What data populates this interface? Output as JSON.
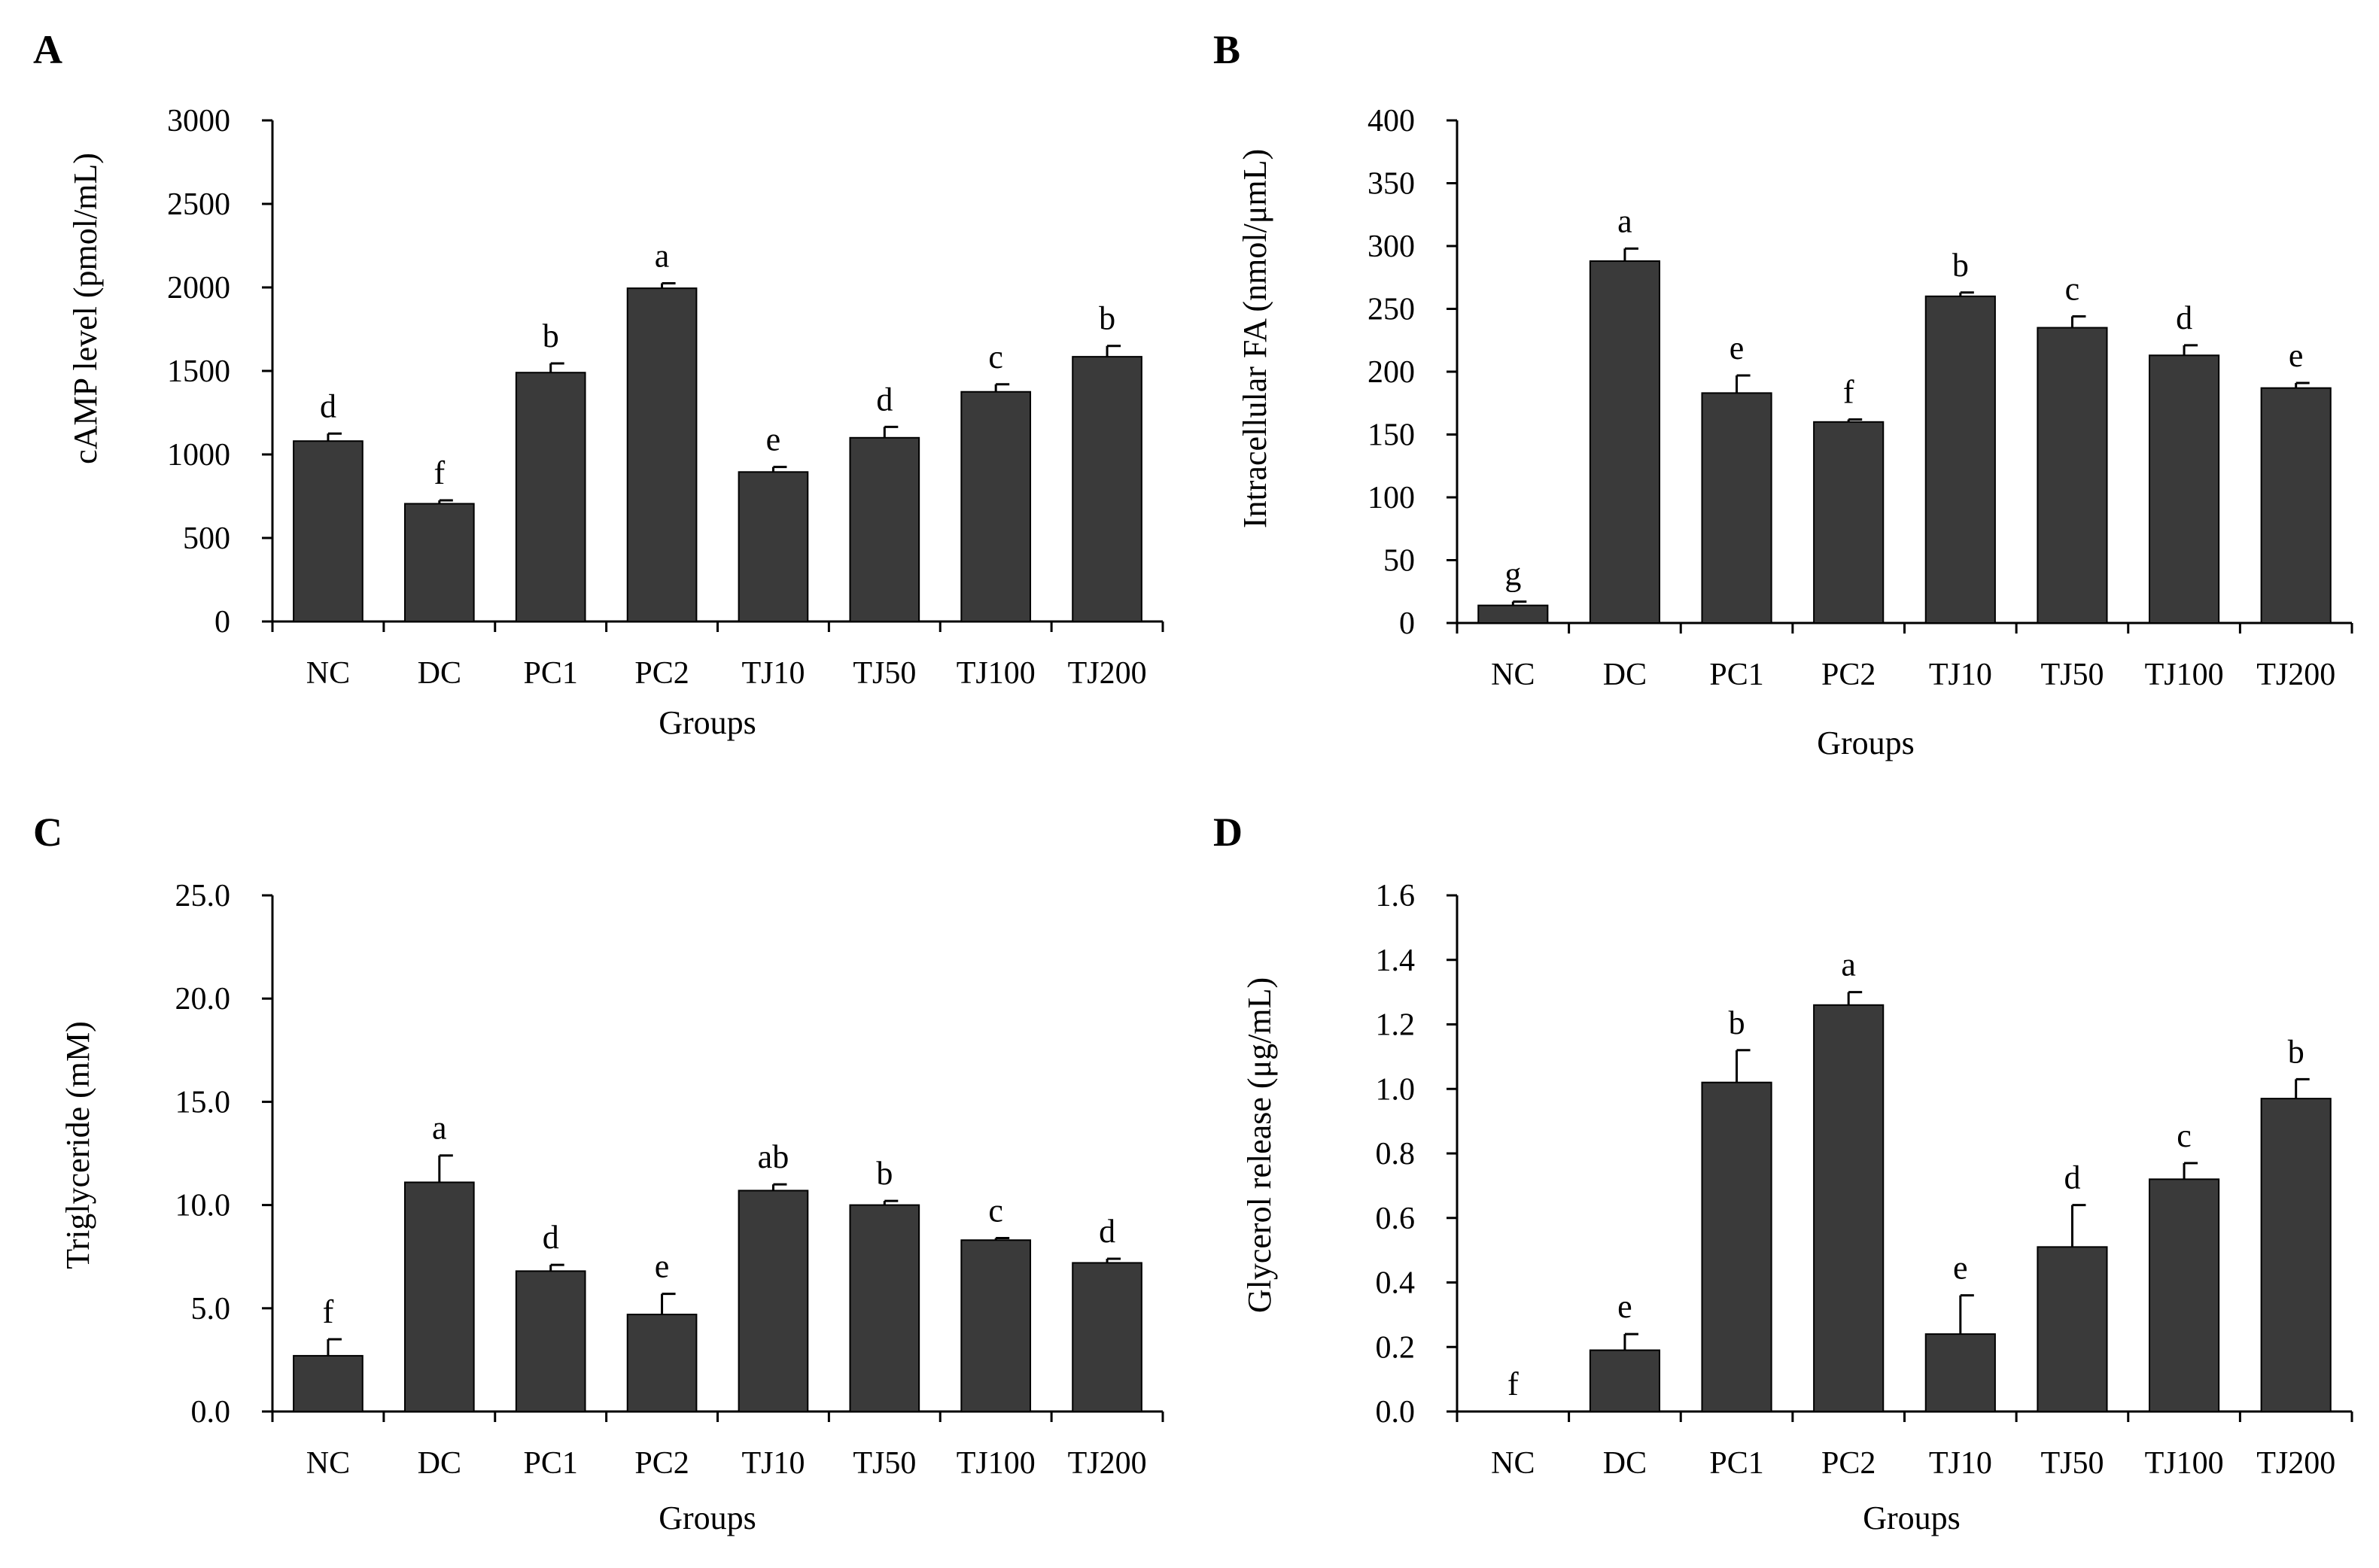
{
  "figure": {
    "bar_color": "#3a3a3a",
    "axis_color": "#000000"
  },
  "chart_data": [
    {
      "panel": "A",
      "type": "bar",
      "categories": [
        "NC",
        "DC",
        "PC1",
        "PC2",
        "TJ10",
        "TJ50",
        "TJ100",
        "TJ200"
      ],
      "values": [
        1080,
        705,
        1490,
        1995,
        895,
        1100,
        1375,
        1585
      ],
      "errors": [
        45,
        20,
        55,
        30,
        30,
        65,
        45,
        65
      ],
      "letters": [
        "d",
        "f",
        "b",
        "a",
        "e",
        "d",
        "c",
        "b"
      ],
      "xlabel": "Groups",
      "ylabel": "cAMP level (pmol/mL)",
      "ylim": [
        0,
        3000
      ],
      "yticks": [
        0,
        500,
        1000,
        1500,
        2000,
        2500,
        3000
      ],
      "ytick_labels": [
        "0",
        "500",
        "1000",
        "1500",
        "2000",
        "2500",
        "3000"
      ]
    },
    {
      "panel": "B",
      "type": "bar",
      "categories": [
        "NC",
        "DC",
        "PC1",
        "PC2",
        "TJ10",
        "TJ50",
        "TJ100",
        "TJ200"
      ],
      "values": [
        14,
        288,
        183,
        160,
        260,
        235,
        213,
        187
      ],
      "errors": [
        3,
        10,
        14,
        2,
        3,
        9,
        8,
        4
      ],
      "letters": [
        "g",
        "a",
        "e",
        "f",
        "b",
        "c",
        "d",
        "e"
      ],
      "xlabel": "Groups",
      "ylabel": "Intracellular FA (nmol/μmL)",
      "ylim": [
        0,
        400
      ],
      "yticks": [
        0,
        50,
        100,
        150,
        200,
        250,
        300,
        350,
        400
      ],
      "ytick_labels": [
        "0",
        "50",
        "100",
        "150",
        "200",
        "250",
        "300",
        "350",
        "400"
      ]
    },
    {
      "panel": "C",
      "type": "bar",
      "categories": [
        "NC",
        "DC",
        "PC1",
        "PC2",
        "TJ10",
        "TJ50",
        "TJ100",
        "TJ200"
      ],
      "values": [
        2.7,
        11.1,
        6.8,
        4.7,
        10.7,
        10.0,
        8.3,
        7.2
      ],
      "errors": [
        0.8,
        1.3,
        0.3,
        1.0,
        0.3,
        0.2,
        0.1,
        0.2
      ],
      "letters": [
        "f",
        "a",
        "d",
        "e",
        "ab",
        "b",
        "c",
        "d"
      ],
      "xlabel": "Groups",
      "ylabel": "Triglyceride (mM)",
      "ylim": [
        0,
        25
      ],
      "yticks": [
        0,
        5,
        10,
        15,
        20,
        25
      ],
      "ytick_labels": [
        "0.0",
        "5.0",
        "10.0",
        "15.0",
        "20.0",
        "25.0"
      ]
    },
    {
      "panel": "D",
      "type": "bar",
      "categories": [
        "NC",
        "DC",
        "PC1",
        "PC2",
        "TJ10",
        "TJ50",
        "TJ100",
        "TJ200"
      ],
      "values": [
        0.0,
        0.19,
        1.02,
        1.26,
        0.24,
        0.51,
        0.72,
        0.97
      ],
      "errors": [
        0.0,
        0.05,
        0.1,
        0.04,
        0.12,
        0.13,
        0.05,
        0.06
      ],
      "letters": [
        "f",
        "e",
        "b",
        "a",
        "e",
        "d",
        "c",
        "b"
      ],
      "xlabel": "Groups",
      "ylabel": "Glycerol release (μg/mL)",
      "ylim": [
        0,
        1.6
      ],
      "yticks": [
        0,
        0.2,
        0.4,
        0.6,
        0.8,
        1.0,
        1.2,
        1.4,
        1.6
      ],
      "ytick_labels": [
        "0.0",
        "0.2",
        "0.4",
        "0.6",
        "0.8",
        "1.0",
        "1.2",
        "1.4",
        "1.6"
      ]
    }
  ]
}
